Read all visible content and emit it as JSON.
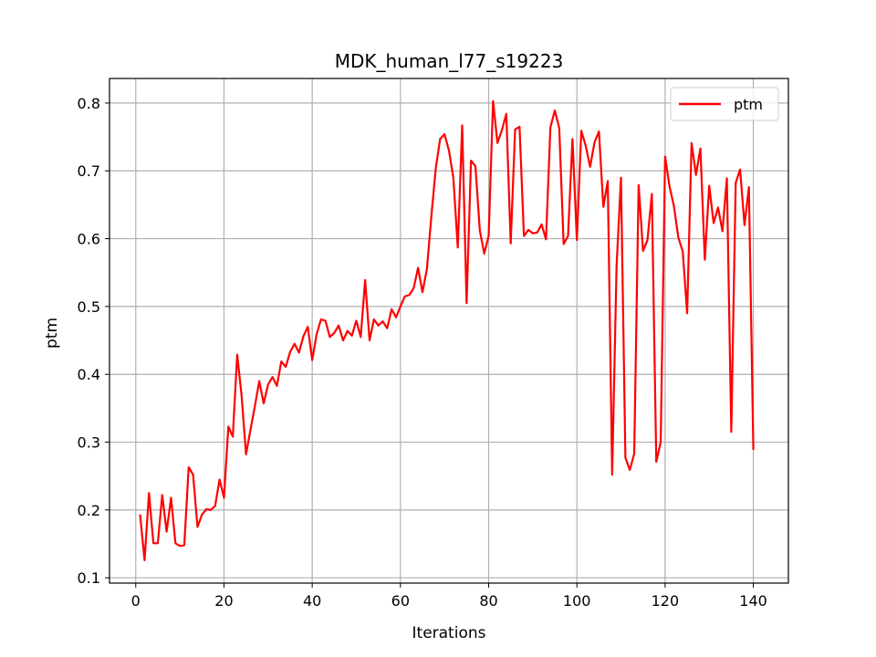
{
  "chart_data": {
    "type": "line",
    "title": "MDK_human_l77_s19223",
    "xlabel": "Iterations",
    "ylabel": "ptm",
    "xlim": [
      -5.95,
      147.95
    ],
    "ylim": [
      0.0922,
      0.8362
    ],
    "xticks": [
      0,
      20,
      40,
      60,
      80,
      100,
      120,
      140
    ],
    "yticks": [
      0.1,
      0.2,
      0.3,
      0.4,
      0.5,
      0.6,
      0.7,
      0.8
    ],
    "xtick_labels": [
      "0",
      "20",
      "40",
      "60",
      "80",
      "100",
      "120",
      "140"
    ],
    "ytick_labels": [
      "0.1",
      "0.2",
      "0.3",
      "0.4",
      "0.5",
      "0.6",
      "0.7",
      "0.8"
    ],
    "grid": true,
    "legend": "top-right",
    "series": [
      {
        "name": "ptm",
        "color": "#ff0000",
        "x": [
          1,
          2,
          3,
          4,
          5,
          6,
          7,
          8,
          9,
          10,
          11,
          12,
          13,
          14,
          15,
          16,
          17,
          18,
          19,
          20,
          21,
          22,
          23,
          24,
          25,
          26,
          27,
          28,
          29,
          30,
          31,
          32,
          33,
          34,
          35,
          36,
          37,
          38,
          39,
          40,
          41,
          42,
          43,
          44,
          45,
          46,
          47,
          48,
          49,
          50,
          51,
          52,
          53,
          54,
          55,
          56,
          57,
          58,
          59,
          60,
          61,
          62,
          63,
          64,
          65,
          66,
          67,
          68,
          69,
          70,
          71,
          72,
          73,
          74,
          75,
          76,
          77,
          78,
          79,
          80,
          81,
          82,
          83,
          84,
          85,
          86,
          87,
          88,
          89,
          90,
          91,
          92,
          93,
          94,
          95,
          96,
          97,
          98,
          99,
          100,
          101,
          102,
          103,
          104,
          105,
          106,
          107,
          108,
          109,
          110,
          111,
          112,
          113,
          114,
          115,
          116,
          117,
          118,
          119,
          120,
          121,
          122,
          123,
          124,
          125,
          126,
          127,
          128,
          129,
          130,
          131,
          132,
          133,
          134,
          135,
          136,
          137,
          138,
          139,
          140
        ],
        "y": [
          0.192,
          0.126,
          0.225,
          0.151,
          0.151,
          0.222,
          0.168,
          0.218,
          0.151,
          0.147,
          0.148,
          0.263,
          0.252,
          0.175,
          0.193,
          0.201,
          0.2,
          0.206,
          0.245,
          0.218,
          0.323,
          0.308,
          0.429,
          0.368,
          0.282,
          0.318,
          0.353,
          0.39,
          0.357,
          0.385,
          0.396,
          0.383,
          0.419,
          0.411,
          0.433,
          0.445,
          0.432,
          0.456,
          0.47,
          0.421,
          0.459,
          0.481,
          0.479,
          0.455,
          0.461,
          0.472,
          0.45,
          0.464,
          0.457,
          0.479,
          0.455,
          0.539,
          0.45,
          0.481,
          0.472,
          0.478,
          0.468,
          0.496,
          0.484,
          0.5,
          0.515,
          0.517,
          0.527,
          0.557,
          0.521,
          0.555,
          0.632,
          0.703,
          0.747,
          0.754,
          0.73,
          0.69,
          0.587,
          0.767,
          0.505,
          0.715,
          0.707,
          0.612,
          0.578,
          0.604,
          0.803,
          0.741,
          0.76,
          0.784,
          0.593,
          0.761,
          0.765,
          0.604,
          0.613,
          0.608,
          0.609,
          0.621,
          0.599,
          0.764,
          0.789,
          0.763,
          0.592,
          0.604,
          0.747,
          0.598,
          0.759,
          0.737,
          0.706,
          0.742,
          0.758,
          0.647,
          0.685,
          0.252,
          0.56,
          0.69,
          0.277,
          0.259,
          0.283,
          0.679,
          0.582,
          0.598,
          0.666,
          0.271,
          0.3,
          0.721,
          0.677,
          0.648,
          0.602,
          0.581,
          0.49,
          0.741,
          0.694,
          0.733,
          0.569,
          0.678,
          0.623,
          0.646,
          0.611,
          0.689,
          0.315,
          0.682,
          0.702,
          0.62,
          0.676,
          0.29
        ]
      }
    ]
  }
}
